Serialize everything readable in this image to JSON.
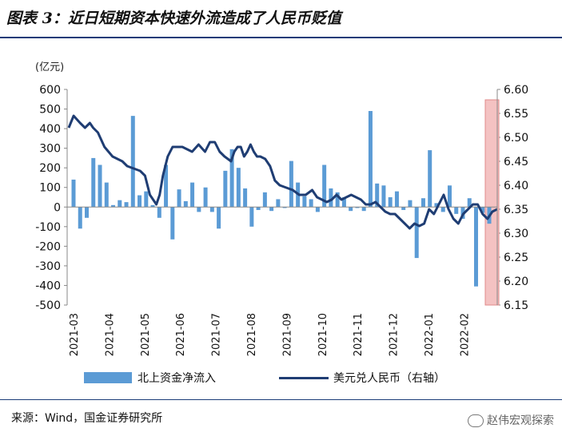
{
  "title": "图表 3：近日短期资本快速外流造成了人民币贬值",
  "source": "来源：Wind，国金证券研究所",
  "watermark": "赵伟宏观探索",
  "colors": {
    "bars": "#5b9bd5",
    "line": "#1f3d73",
    "highlight": "#f4c2c2",
    "highlight_border": "#e08a8a",
    "rule": "#1a3b78"
  },
  "chart_data": {
    "type": "bar+line",
    "left_axis": {
      "unit_label": "(亿元)",
      "ylim": [
        -500,
        600
      ],
      "ticks": [
        "600",
        "500",
        "400",
        "300",
        "200",
        "100",
        "0",
        "-100",
        "-200",
        "-300",
        "-400",
        "-500"
      ]
    },
    "right_axis": {
      "ylim": [
        6.15,
        6.6
      ],
      "ticks": [
        "6.60",
        "6.55",
        "6.50",
        "6.45",
        "6.40",
        "6.35",
        "6.30",
        "6.25",
        "6.20",
        "6.15"
      ]
    },
    "x_labels": [
      "2021-03",
      "2021-04",
      "2021-05",
      "2021-06",
      "2021-07",
      "2021-08",
      "2021-09",
      "2021-10",
      "2021-11",
      "2021-12",
      "2022-01",
      "2022-02"
    ],
    "series": [
      {
        "name": "北上资金净流入",
        "kind": "bar",
        "axis": "left",
        "values": [
          140,
          -110,
          -55,
          250,
          215,
          125,
          10,
          35,
          25,
          465,
          60,
          80,
          10,
          -55,
          215,
          -165,
          90,
          30,
          125,
          -25,
          100,
          -25,
          -110,
          185,
          295,
          200,
          95,
          -100,
          -15,
          75,
          -20,
          40,
          -5,
          235,
          125,
          55,
          40,
          -25,
          215,
          95,
          75,
          50,
          -20,
          -5,
          -20,
          490,
          120,
          110,
          50,
          80,
          -15,
          35,
          -260,
          45,
          290,
          20,
          -25,
          110,
          -35,
          -60,
          45,
          -405,
          -30,
          -85
        ]
      },
      {
        "name": "美元兑人民币（右轴）",
        "kind": "line",
        "axis": "right",
        "x": [
          0,
          3,
          7,
          10,
          13,
          15,
          18,
          22,
          27,
          33,
          36,
          40,
          44,
          47,
          50,
          54,
          56,
          58,
          61,
          64,
          70,
          76,
          80,
          84,
          87,
          90,
          93,
          96,
          98,
          100,
          102,
          104,
          106,
          108,
          110,
          112,
          114,
          116,
          118,
          121,
          124,
          127,
          130,
          134,
          138,
          142,
          146,
          150,
          153,
          156,
          159,
          162,
          165,
          168,
          171,
          174,
          177,
          180,
          183,
          186,
          189,
          192,
          195,
          198,
          201,
          204,
          207,
          210,
          213,
          216,
          219,
          222,
          225,
          228,
          231,
          234,
          237,
          240,
          243,
          246,
          249,
          252,
          255,
          258,
          261,
          264
        ],
        "y": [
          6.52,
          6.545,
          6.53,
          6.52,
          6.53,
          6.52,
          6.51,
          6.48,
          6.46,
          6.45,
          6.44,
          6.435,
          6.43,
          6.42,
          6.38,
          6.36,
          6.38,
          6.42,
          6.46,
          6.48,
          6.48,
          6.47,
          6.485,
          6.47,
          6.49,
          6.49,
          6.47,
          6.46,
          6.455,
          6.45,
          6.47,
          6.48,
          6.48,
          6.46,
          6.47,
          6.485,
          6.47,
          6.46,
          6.46,
          6.455,
          6.44,
          6.41,
          6.4,
          6.395,
          6.39,
          6.38,
          6.38,
          6.39,
          6.375,
          6.37,
          6.365,
          6.37,
          6.38,
          6.37,
          6.375,
          6.38,
          6.375,
          6.37,
          6.36,
          6.36,
          6.365,
          6.355,
          6.345,
          6.34,
          6.34,
          6.33,
          6.32,
          6.31,
          6.32,
          6.315,
          6.32,
          6.35,
          6.34,
          6.36,
          6.38,
          6.35,
          6.33,
          6.32,
          6.34,
          6.35,
          6.36,
          6.36,
          6.34,
          6.33,
          6.345,
          6.35
        ]
      }
    ],
    "highlight_region": "last ~2 weeks (2022-02 end)",
    "legend_position": "bottom"
  }
}
